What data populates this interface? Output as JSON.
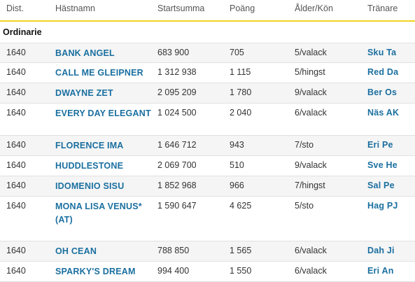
{
  "columns": {
    "dist": "Dist.",
    "name": "Hästnamn",
    "sum": "Startsumma",
    "points": "Poäng",
    "age_sex": "Ålder/Kön",
    "trainer": "Tränare"
  },
  "section": "Ordinarie",
  "rows": [
    {
      "dist": "1640",
      "name": "BANK ANGEL",
      "sum": "683 900",
      "points": "705",
      "age_sex": "5/valack",
      "trainer": "Sku Ta"
    },
    {
      "dist": "1640",
      "name": "CALL ME GLEIPNER",
      "sum": "1 312 938",
      "points": "1 115",
      "age_sex": "5/hingst",
      "trainer": "Red Da"
    },
    {
      "dist": "1640",
      "name": "DWAYNE ZET",
      "sum": "2 095 209",
      "points": "1 780",
      "age_sex": "9/valack",
      "trainer": "Ber Os"
    },
    {
      "dist": "1640",
      "name": "EVERY DAY ELEGANT",
      "sum": "1 024 500",
      "points": "2 040",
      "age_sex": "6/valack",
      "trainer": "Näs AK"
    },
    {
      "dist": "1640",
      "name": "FLORENCE IMA",
      "sum": "1 646 712",
      "points": "943",
      "age_sex": "7/sto",
      "trainer": "Eri Pe"
    },
    {
      "dist": "1640",
      "name": "HUDDLESTONE",
      "sum": "2 069 700",
      "points": "510",
      "age_sex": "9/valack",
      "trainer": "Sve He"
    },
    {
      "dist": "1640",
      "name": "IDOMENIO SISU",
      "sum": "1 852 968",
      "points": "966",
      "age_sex": "7/hingst",
      "trainer": "Sal Pe"
    },
    {
      "dist": "1640",
      "name": "MONA LISA VENUS* (AT)",
      "sum": "1 590 647",
      "points": "4 625",
      "age_sex": "5/sto",
      "trainer": "Hag PJ"
    },
    {
      "dist": "1640",
      "name": "OH CEAN",
      "sum": "788 850",
      "points": "1 565",
      "age_sex": "6/valack",
      "trainer": "Dah Ji"
    },
    {
      "dist": "1640",
      "name": "SPARKY'S DREAM",
      "sum": "994 400",
      "points": "1 550",
      "age_sex": "6/valack",
      "trainer": "Eri An"
    }
  ]
}
